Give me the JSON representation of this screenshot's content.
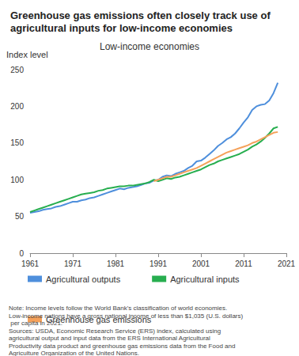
{
  "chart_data": {
    "type": "line",
    "title": "Greenhouse gas emissions often closely track use of agricultural inputs for low-income economies",
    "subtitle": "Low-income economies",
    "y_label": "Index level",
    "notes": [
      "Note: Income levels follow the World Bank's classification of world economies. Low-income nations have a gross national income of less than $1,035 (U.S. dollars) per capita in 2021.",
      "Sources: USDA, Economic Research Service (ERS) index, calculated using agricultural output and input data from the ERS International Agricultural Productivity data product and greenhouse gas emissions data from the Food and Agriculture Organization of the United Nations."
    ],
    "x": [
      1961,
      1962,
      1963,
      1964,
      1965,
      1966,
      1967,
      1968,
      1969,
      1970,
      1971,
      1972,
      1973,
      1974,
      1975,
      1976,
      1977,
      1978,
      1979,
      1980,
      1981,
      1982,
      1983,
      1984,
      1985,
      1986,
      1987,
      1988,
      1989,
      1990,
      1991,
      1992,
      1993,
      1994,
      1995,
      1996,
      1997,
      1998,
      1999,
      2000,
      2001,
      2002,
      2003,
      2004,
      2005,
      2006,
      2007,
      2008,
      2009,
      2010,
      2011,
      2012,
      2013,
      2014,
      2015,
      2016,
      2017,
      2018,
      2019
    ],
    "series": [
      {
        "name": "Agricultural outputs",
        "color": "#4e8fdc",
        "values": [
          55,
          56,
          57,
          59,
          60,
          61,
          63,
          64,
          66,
          68,
          70,
          70,
          72,
          73,
          75,
          76,
          78,
          80,
          82,
          84,
          86,
          88,
          87,
          89,
          90,
          91,
          93,
          95,
          96,
          99,
          100,
          104,
          106,
          105,
          108,
          110,
          112,
          116,
          119,
          125,
          126,
          130,
          135,
          140,
          146,
          150,
          155,
          158,
          163,
          170,
          178,
          185,
          195,
          200,
          202,
          203,
          208,
          218,
          232
        ]
      },
      {
        "name": "Agricultural inputs",
        "color": "#27ae4f",
        "values": [
          56,
          58,
          60,
          62,
          64,
          66,
          68,
          70,
          72,
          74,
          76,
          78,
          80,
          81,
          82,
          83,
          85,
          86,
          88,
          89,
          90,
          91,
          91,
          92,
          92,
          93,
          94,
          95,
          97,
          100,
          98,
          100,
          102,
          101,
          103,
          104,
          106,
          108,
          110,
          112,
          114,
          117,
          120,
          122,
          125,
          127,
          129,
          131,
          133,
          135,
          138,
          141,
          145,
          148,
          152,
          157,
          163,
          170,
          172
        ]
      },
      {
        "name": "Greenhouse gas emissions",
        "color": "#f5a15a",
        "values": [
          null,
          null,
          null,
          null,
          null,
          null,
          null,
          null,
          null,
          null,
          null,
          null,
          null,
          null,
          null,
          null,
          null,
          null,
          null,
          null,
          null,
          null,
          null,
          null,
          null,
          null,
          null,
          null,
          null,
          98,
          100,
          102,
          104,
          104,
          106,
          108,
          110,
          112,
          114,
          116,
          119,
          122,
          125,
          128,
          131,
          134,
          137,
          139,
          141,
          143,
          145,
          147,
          150,
          152,
          155,
          158,
          161,
          164,
          165
        ]
      }
    ],
    "xlim": [
      1961,
      2021
    ],
    "xticks": [
      1961,
      1971,
      1981,
      1991,
      2001,
      2011,
      2021
    ],
    "ylim": [
      0,
      250
    ],
    "yticks": [
      0,
      50,
      100,
      150,
      200,
      250
    ],
    "grid": false,
    "legend": "bottom"
  }
}
